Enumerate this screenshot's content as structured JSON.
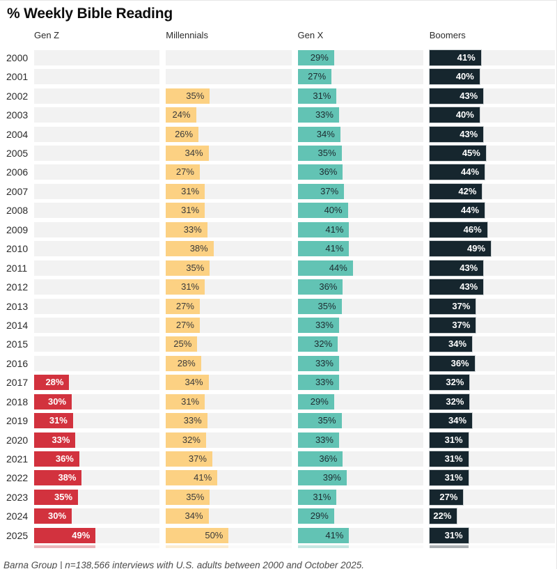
{
  "title": "% Weekly Bible Reading",
  "footer": "Barna Group | n=138,566 interviews with U.S. adults between 2000 and October 2025.",
  "colors": {
    "track": "#f2f2f2",
    "gen_z_red": "#d2323e",
    "millennials_orange": "#fcd183",
    "gen_x_teal": "#62c3b4",
    "boomers_navy": "#16262e",
    "page_background": "#ffffff"
  },
  "chart_data": {
    "type": "bar",
    "orientation": "horizontal",
    "layout": "small-multiples-by-generation",
    "title": "% Weekly Bible Reading",
    "value_suffix": "%",
    "xlim": [
      0,
      100
    ],
    "categories": [
      2000,
      2001,
      2002,
      2003,
      2004,
      2005,
      2006,
      2007,
      2008,
      2009,
      2010,
      2011,
      2012,
      2013,
      2014,
      2015,
      2016,
      2017,
      2018,
      2019,
      2020,
      2021,
      2022,
      2023,
      2024,
      2025
    ],
    "series": [
      {
        "name": "Gen Z",
        "color": "#d2323e",
        "label_color": "#ffffff",
        "label_weight": "700",
        "bar_border": null,
        "values": [
          null,
          null,
          null,
          null,
          null,
          null,
          null,
          null,
          null,
          null,
          null,
          null,
          null,
          null,
          null,
          null,
          null,
          28,
          30,
          31,
          33,
          36,
          38,
          35,
          30,
          49
        ]
      },
      {
        "name": "Millennials",
        "color": "#fcd183",
        "label_color": "#3a3a3a",
        "label_weight": "400",
        "bar_border": null,
        "values": [
          null,
          null,
          35,
          24,
          26,
          34,
          27,
          31,
          31,
          33,
          38,
          35,
          31,
          27,
          27,
          25,
          28,
          34,
          31,
          33,
          32,
          37,
          41,
          35,
          34,
          50
        ]
      },
      {
        "name": "Gen X",
        "color": "#62c3b4",
        "label_color": "#1d2b30",
        "label_weight": "400",
        "bar_border": null,
        "values": [
          29,
          27,
          31,
          33,
          34,
          35,
          36,
          37,
          40,
          41,
          41,
          44,
          36,
          35,
          33,
          32,
          33,
          33,
          29,
          35,
          33,
          36,
          39,
          31,
          29,
          41
        ]
      },
      {
        "name": "Boomers",
        "color": "#16262e",
        "label_color": "#ffffff",
        "label_weight": "700",
        "bar_border": "#cdd2d4",
        "values": [
          41,
          40,
          43,
          40,
          43,
          45,
          44,
          42,
          44,
          46,
          49,
          43,
          43,
          37,
          37,
          34,
          36,
          32,
          32,
          34,
          31,
          31,
          31,
          27,
          22,
          31
        ]
      }
    ],
    "source_note": "Barna Group | n=138,566 interviews with U.S. adults between 2000 and October 2025."
  }
}
